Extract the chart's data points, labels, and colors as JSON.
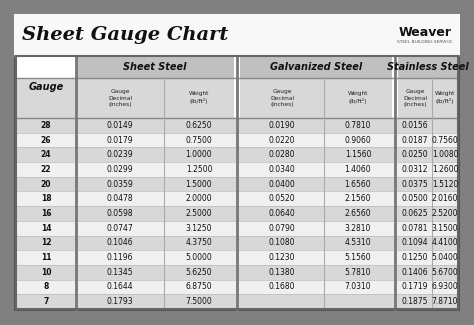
{
  "title": "Sheet Gauge Chart",
  "bg_outer": "#808080",
  "bg_inner": "#ffffff",
  "bg_header_row1": "#c8c8c8",
  "bg_row_shaded": "#d8d8d8",
  "bg_row_white": "#f0f0f0",
  "gauges": [
    "28",
    "26",
    "24",
    "22",
    "20",
    "18",
    "16",
    "14",
    "12",
    "11",
    "10",
    "8",
    "7"
  ],
  "sheet_steel_decimal": [
    "0.0149",
    "0.0179",
    "0.0239",
    "0.0299",
    "0.0359",
    "0.0478",
    "0.0598",
    "0.0747",
    "0.1046",
    "0.1196",
    "0.1345",
    "0.1644",
    "0.1793"
  ],
  "sheet_steel_weight": [
    "0.6250",
    "0.7500",
    "1.0000",
    "1.2500",
    "1.5000",
    "2.0000",
    "2.5000",
    "3.1250",
    "4.3750",
    "5.0000",
    "5.6250",
    "6.8750",
    "7.5000"
  ],
  "galv_decimal": [
    "0.0190",
    "0.0220",
    "0.0280",
    "0.0340",
    "0.0400",
    "0.0520",
    "0.0640",
    "0.0790",
    "0.1080",
    "0.1230",
    "0.1380",
    "0.1680",
    ""
  ],
  "galv_weight": [
    "0.7810",
    "0.9060",
    "1.1560",
    "1.4060",
    "1.6560",
    "2.1560",
    "2.6560",
    "3.2810",
    "4.5310",
    "5.1560",
    "5.7810",
    "7.0310",
    ""
  ],
  "stainless_decimal": [
    "0.0156",
    "0.0187",
    "0.0250",
    "0.0312",
    "0.0375",
    "0.0500",
    "0.0625",
    "0.0781",
    "0.1094",
    "0.1250",
    "0.1406",
    "0.1719",
    "0.1875"
  ],
  "stainless_weight": [
    "",
    "0.7560",
    "1.0080",
    "1.2600",
    "1.5120",
    "2.0160",
    "2.5200",
    "3.1500",
    "4.4100",
    "5.0400",
    "5.6700",
    "6.9300",
    "7.8710"
  ],
  "figsize": [
    4.74,
    3.25
  ],
  "dpi": 100
}
